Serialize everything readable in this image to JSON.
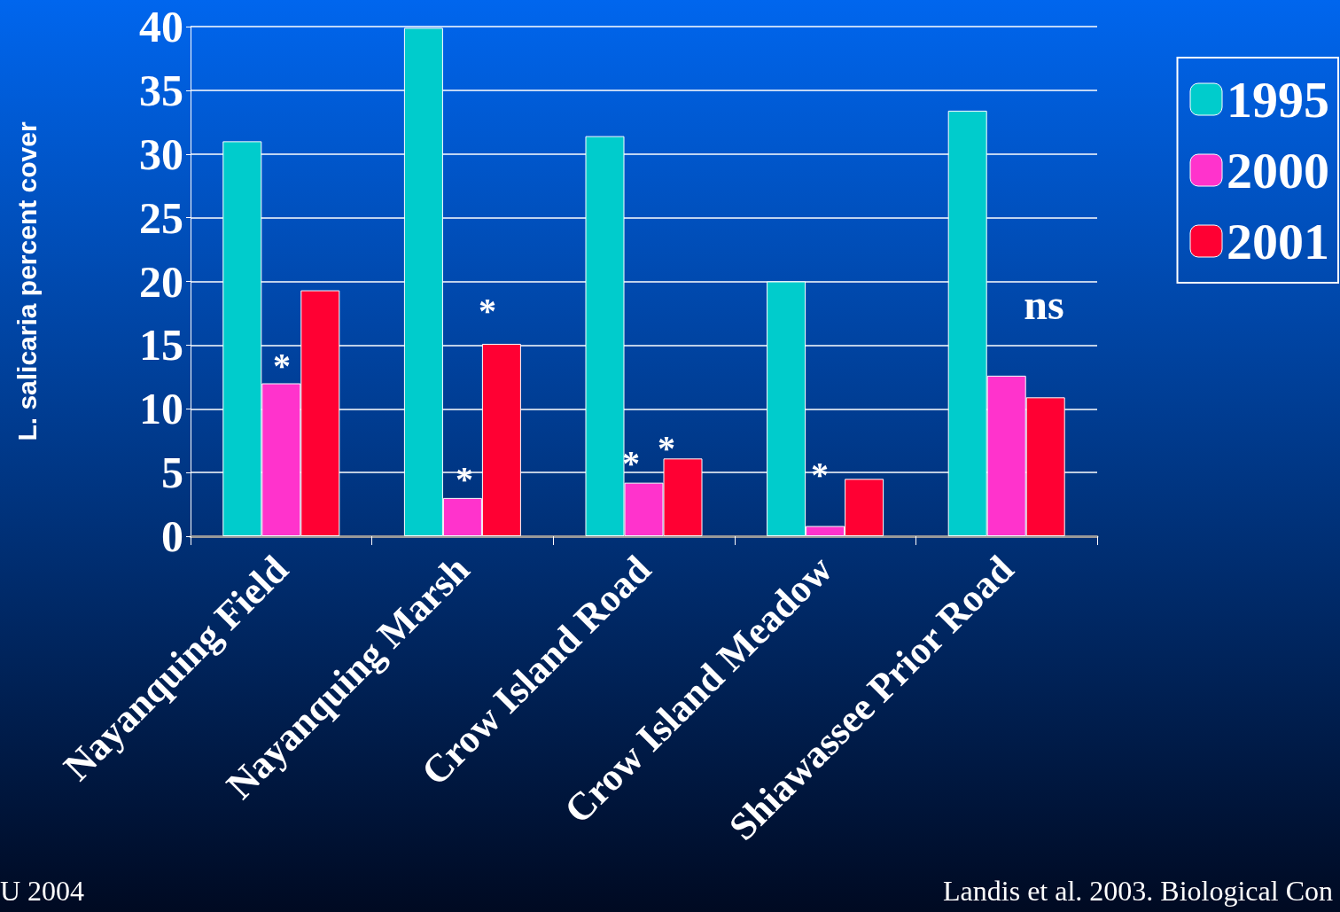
{
  "chart_data": {
    "type": "bar",
    "ylabel": "L. salicaria percent cover",
    "categories": [
      "Nayanquing Field",
      "Nayanquing Marsh",
      "Crow Island Road",
      "Crow Island Meadow",
      "Shiawassee Prior Road"
    ],
    "series": [
      {
        "name": "1995",
        "color": "#00cccc",
        "values": [
          31.0,
          39.9,
          31.4,
          20.0,
          33.4
        ]
      },
      {
        "name": "2000",
        "color": "#ff33cc",
        "values": [
          12.0,
          3.0,
          4.2,
          0.8,
          12.6
        ]
      },
      {
        "name": "2001",
        "color": "#ff0033",
        "values": [
          19.3,
          15.1,
          6.1,
          4.5,
          10.9
        ]
      }
    ],
    "ylim": [
      0,
      40
    ],
    "yticks": [
      0,
      5,
      10,
      15,
      20,
      25,
      30,
      35,
      40
    ],
    "grid": "y",
    "legend": "top right",
    "annotations": [
      "*",
      "*",
      "*",
      "*",
      "*",
      "*",
      "ns",
      "U 2004",
      "Landis et al. 2003. Biological Con"
    ]
  }
}
